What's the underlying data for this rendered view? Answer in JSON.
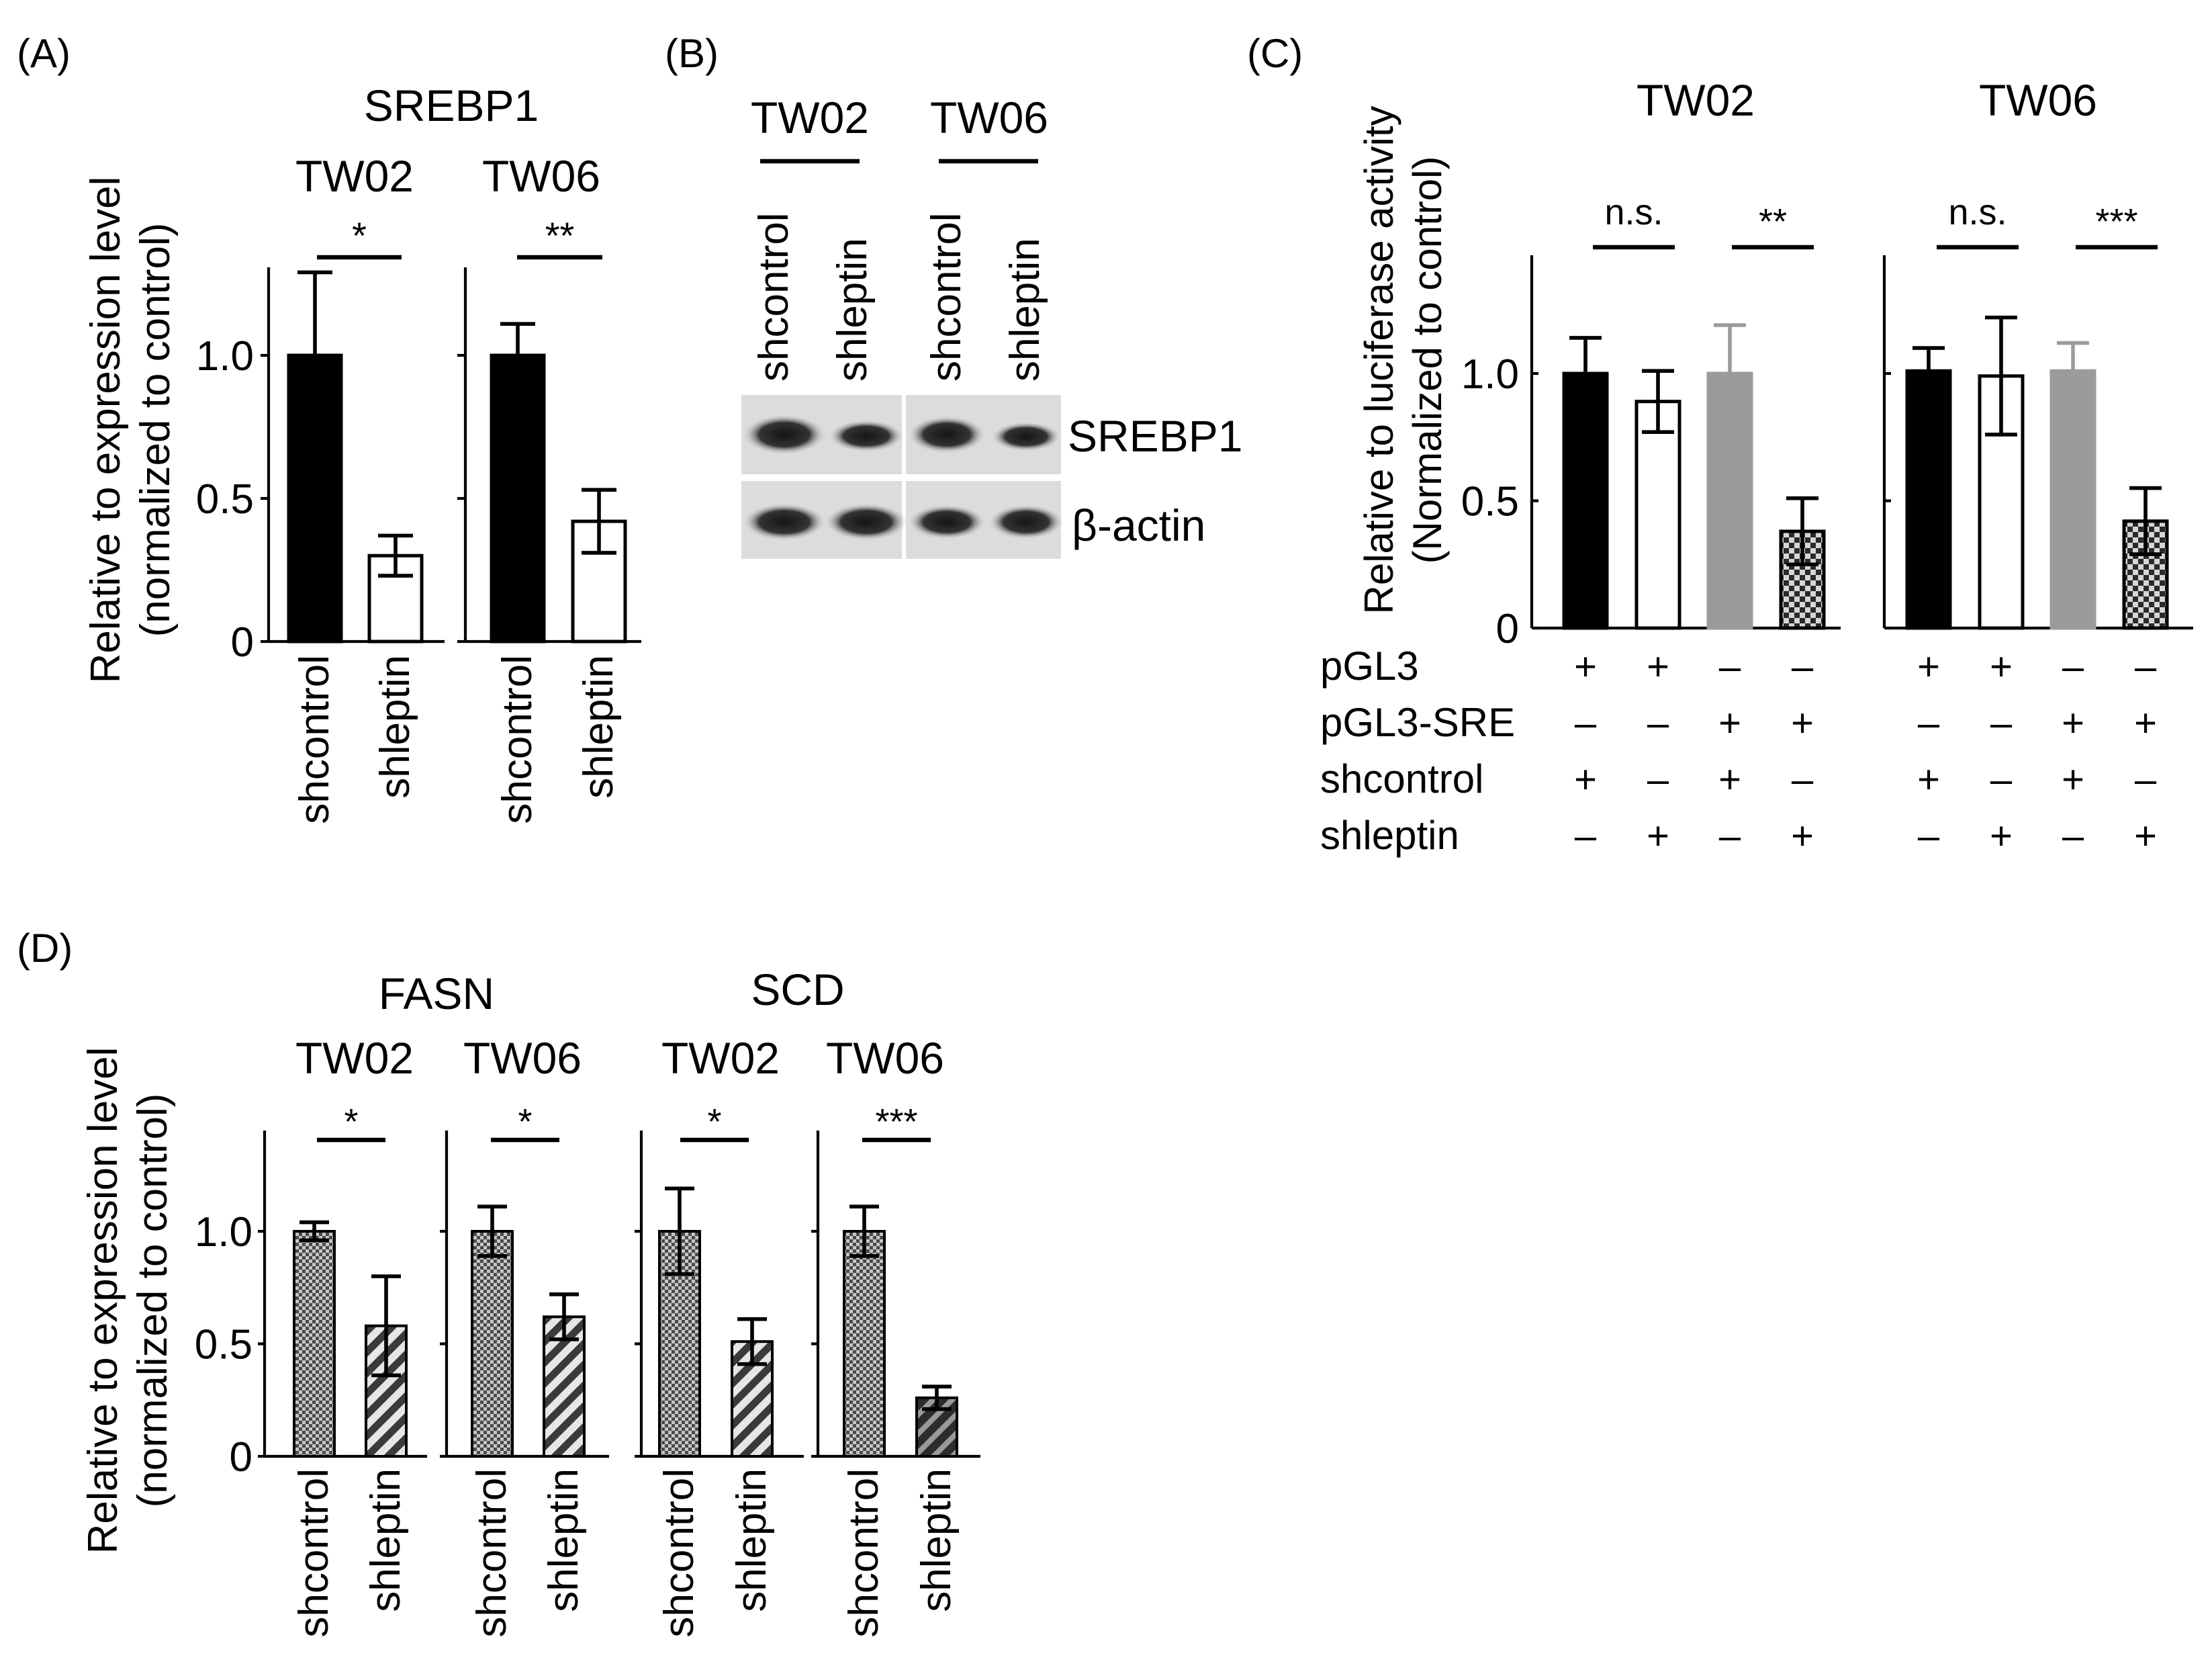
{
  "panels": {
    "A": {
      "label": "(A)",
      "gene": "SREBP1",
      "ylabel": [
        "Relative to  expression level",
        "(normalized to control)"
      ]
    },
    "B": {
      "label": "(B)",
      "lines": [
        "TW02",
        "TW06"
      ],
      "lanes": [
        "shcontrol",
        "shleptin",
        "shcontrol",
        "shleptin"
      ],
      "bands": [
        "SREBP1",
        "β-actin"
      ]
    },
    "C": {
      "label": "(C)",
      "ylabel": [
        "Relative to luciferase activity",
        "(Normalized to control)"
      ],
      "row_labels": [
        "pGL3",
        "pGL3-SRE",
        "shcontrol",
        "shleptin"
      ],
      "conditions": [
        [
          "+",
          "+",
          "–",
          "–"
        ],
        [
          "–",
          "–",
          "+",
          "+"
        ],
        [
          "+",
          "–",
          "+",
          "–"
        ],
        [
          "–",
          "+",
          "–",
          "+"
        ]
      ]
    },
    "D": {
      "label": "(D)",
      "genes": [
        "FASN",
        "SCD"
      ],
      "ylabel": [
        "Relative to expression level",
        "(normalized to control)"
      ]
    }
  },
  "chart_data": [
    {
      "panel": "A",
      "type": "bar",
      "title": "SREBP1",
      "ylabel": "Relative to  expression level (normalized to control)",
      "yticks": [
        0,
        0.5,
        1.0
      ],
      "tick_labels": [
        "0",
        "0.5",
        "1.0"
      ],
      "ylim": [
        0,
        1.3
      ],
      "groups": [
        {
          "name": "TW02",
          "categories": [
            "shcontrol",
            "shleptin"
          ],
          "values": [
            1.0,
            0.3
          ],
          "errors": [
            0.29,
            0.07
          ],
          "significance": "*"
        },
        {
          "name": "TW06",
          "categories": [
            "shcontrol",
            "shleptin"
          ],
          "values": [
            1.0,
            0.42
          ],
          "errors": [
            0.11,
            0.11
          ],
          "significance": "**"
        }
      ]
    },
    {
      "panel": "C",
      "type": "bar",
      "title": "Luciferase activity",
      "ylabel": "Relative to luciferase activity (Normalized to control)",
      "yticks": [
        0,
        0.5,
        1.0
      ],
      "tick_labels": [
        "0",
        "0.5",
        "1.0"
      ],
      "ylim": [
        0,
        1.45
      ],
      "groups": [
        {
          "name": "TW02",
          "values": [
            1.0,
            0.89,
            1.0,
            0.38
          ],
          "errors": [
            0.14,
            0.12,
            0.19,
            0.13
          ],
          "significance": [
            "n.s.",
            "**"
          ]
        },
        {
          "name": "TW06",
          "values": [
            1.01,
            0.99,
            1.01,
            0.42
          ],
          "errors": [
            0.09,
            0.23,
            0.11,
            0.13
          ],
          "significance": [
            "n.s.",
            "***"
          ]
        }
      ]
    },
    {
      "panel": "D",
      "type": "bar",
      "title": "FASN / SCD",
      "ylabel": "Relative to expression level (normalized to control)",
      "yticks": [
        0,
        0.5,
        1.0
      ],
      "tick_labels": [
        "0",
        "0.5",
        "1.0"
      ],
      "ylim": [
        0,
        1.45
      ],
      "groups": [
        {
          "gene": "FASN",
          "name": "TW02",
          "categories": [
            "shcontrol",
            "shleptin"
          ],
          "values": [
            1.0,
            0.58
          ],
          "errors": [
            0.04,
            0.22
          ],
          "significance": "*"
        },
        {
          "gene": "FASN",
          "name": "TW06",
          "categories": [
            "shcontrol",
            "shleptin"
          ],
          "values": [
            1.0,
            0.62
          ],
          "errors": [
            0.11,
            0.1
          ],
          "significance": "*"
        },
        {
          "gene": "SCD",
          "name": "TW02",
          "categories": [
            "shcontrol",
            "shleptin"
          ],
          "values": [
            1.0,
            0.51
          ],
          "errors": [
            0.19,
            0.1
          ],
          "significance": "*"
        },
        {
          "gene": "SCD",
          "name": "TW06",
          "categories": [
            "shcontrol",
            "shleptin"
          ],
          "values": [
            1.0,
            0.26
          ],
          "errors": [
            0.11,
            0.05
          ],
          "significance": "***"
        }
      ]
    }
  ]
}
